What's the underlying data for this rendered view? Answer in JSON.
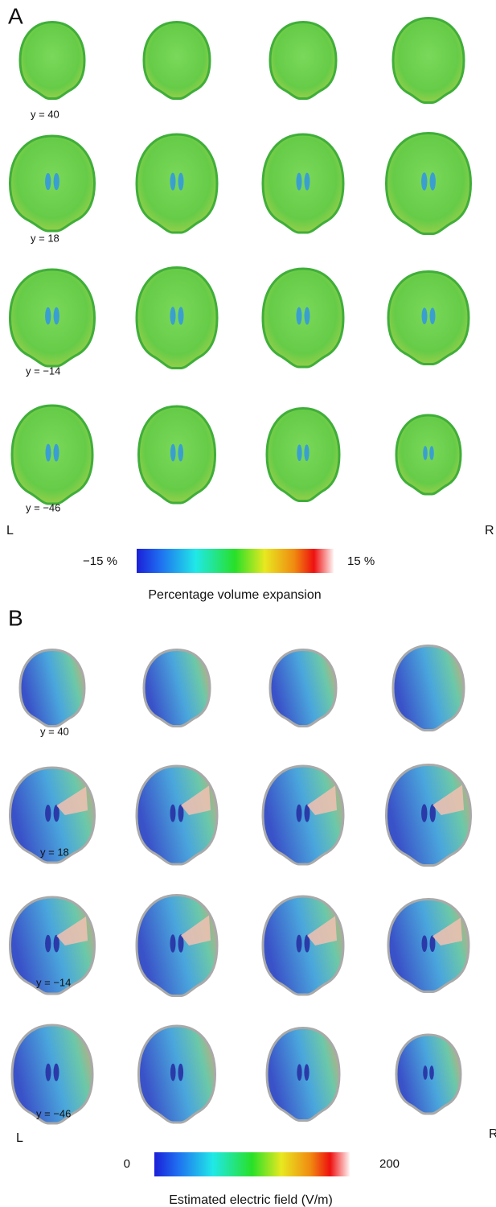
{
  "panels": [
    {
      "label": "A",
      "rows": [
        "y = 40",
        "y = 18",
        "y = −14",
        "y = −46"
      ],
      "left": "L",
      "right": "R",
      "colorbar": {
        "min": "−15 %",
        "max": "15 %",
        "title": "Percentage volume expansion"
      }
    },
    {
      "label": "B",
      "rows": [
        "y = 40",
        "y = 18",
        "y = −14",
        "y = −46"
      ],
      "left": "L",
      "right": "R",
      "colorbar": {
        "min": "0",
        "max": "200",
        "title": "Estimated electric field (V/m)"
      }
    }
  ]
}
